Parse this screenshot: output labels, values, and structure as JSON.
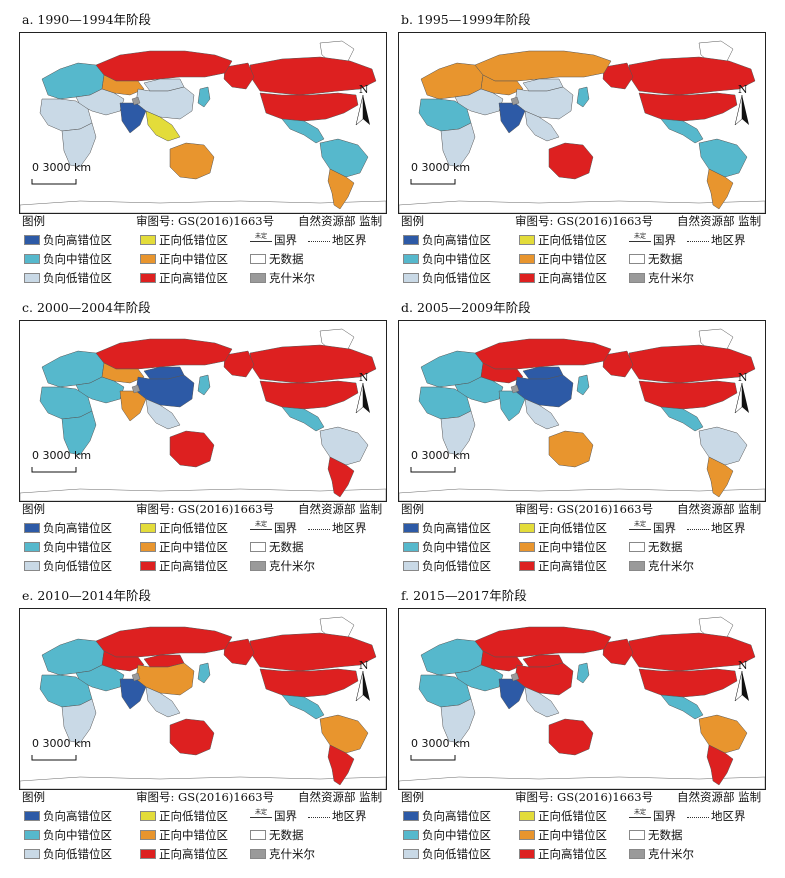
{
  "panels": [
    {
      "title": "a. 1990—1994年阶段"
    },
    {
      "title": "b. 1995—1999年阶段"
    },
    {
      "title": "c. 2000—2004年阶段"
    },
    {
      "title": "d. 2005—2009年阶段"
    },
    {
      "title": "e. 2010—2014年阶段"
    },
    {
      "title": "f. 2015—2017年阶段"
    }
  ],
  "scale_label": "0  3000 km",
  "north_label": "N",
  "legend": {
    "title": "图例",
    "map_approval": "审图号: GS(2016)1663号",
    "supervisor": "自然资源部 监制",
    "items": {
      "neg_high": "负向高错位区",
      "pos_low": "正向低错位区",
      "border_national": "国界",
      "border_national_tiny": "未定",
      "border_regional": "地区界",
      "neg_mid": "负向中错位区",
      "pos_mid": "正向中错位区",
      "no_data": "无数据",
      "neg_low": "负向低错位区",
      "pos_high": "正向高错位区",
      "kashmir": "克什米尔"
    }
  },
  "colors": {
    "neg_high": "#2d5aa6",
    "neg_mid": "#56b8cc",
    "neg_low": "#c9d9e6",
    "pos_low": "#e3dc3a",
    "pos_mid": "#e8952e",
    "pos_high": "#dd2020",
    "no_data": "#ffffff",
    "kashmir": "#9a9a9a"
  },
  "region_classes": {
    "a": {
      "europe": "neg_mid",
      "russia": "pos_high",
      "china": "neg_low",
      "mongolia": "neg_low",
      "kazakh": "pos_mid",
      "india": "neg_high",
      "mideast": "neg_low",
      "seasia": "pos_low",
      "japan": "neg_mid",
      "africa_n": "neg_low",
      "africa_s": "neg_low",
      "australia": "pos_mid",
      "usa": "pos_high",
      "canada": "pos_high",
      "alaska": "pos_high",
      "greenland": "no_data",
      "mexico": "neg_mid",
      "sa_north": "neg_mid",
      "sa_south": "pos_mid"
    },
    "b": {
      "europe": "pos_mid",
      "russia": "pos_mid",
      "china": "neg_low",
      "mongolia": "neg_low",
      "kazakh": "pos_mid",
      "india": "neg_high",
      "mideast": "neg_low",
      "seasia": "neg_low",
      "japan": "neg_mid",
      "africa_n": "neg_mid",
      "africa_s": "neg_low",
      "australia": "pos_high",
      "usa": "pos_high",
      "canada": "pos_high",
      "alaska": "pos_high",
      "greenland": "no_data",
      "mexico": "neg_mid",
      "sa_north": "neg_mid",
      "sa_south": "pos_mid"
    },
    "c": {
      "europe": "neg_mid",
      "russia": "pos_high",
      "china": "neg_high",
      "mongolia": "neg_high",
      "kazakh": "pos_mid",
      "india": "pos_mid",
      "mideast": "neg_mid",
      "seasia": "neg_low",
      "japan": "neg_mid",
      "africa_n": "neg_mid",
      "africa_s": "neg_mid",
      "australia": "pos_high",
      "usa": "pos_high",
      "canada": "pos_high",
      "alaska": "pos_high",
      "greenland": "no_data",
      "mexico": "neg_mid",
      "sa_north": "neg_low",
      "sa_south": "pos_high"
    },
    "d": {
      "europe": "neg_mid",
      "russia": "pos_high",
      "china": "neg_high",
      "mongolia": "neg_high",
      "kazakh": "pos_high",
      "india": "neg_mid",
      "mideast": "neg_mid",
      "seasia": "neg_low",
      "japan": "neg_mid",
      "africa_n": "neg_mid",
      "africa_s": "neg_low",
      "australia": "pos_mid",
      "usa": "pos_high",
      "canada": "pos_high",
      "alaska": "pos_high",
      "greenland": "no_data",
      "mexico": "neg_mid",
      "sa_north": "neg_low",
      "sa_south": "pos_mid"
    },
    "e": {
      "europe": "neg_mid",
      "russia": "pos_high",
      "china": "pos_mid",
      "mongolia": "pos_high",
      "kazakh": "pos_high",
      "india": "neg_high",
      "mideast": "neg_mid",
      "seasia": "neg_low",
      "japan": "neg_mid",
      "africa_n": "neg_mid",
      "africa_s": "neg_low",
      "australia": "pos_high",
      "usa": "pos_high",
      "canada": "pos_high",
      "alaska": "pos_high",
      "greenland": "no_data",
      "mexico": "neg_mid",
      "sa_north": "pos_mid",
      "sa_south": "pos_high"
    },
    "f": {
      "europe": "neg_mid",
      "russia": "pos_high",
      "china": "pos_high",
      "mongolia": "pos_high",
      "kazakh": "pos_high",
      "india": "neg_high",
      "mideast": "neg_mid",
      "seasia": "neg_low",
      "japan": "neg_mid",
      "africa_n": "neg_mid",
      "africa_s": "neg_low",
      "australia": "pos_high",
      "usa": "pos_high",
      "canada": "pos_high",
      "alaska": "pos_high",
      "greenland": "no_data",
      "mexico": "neg_mid",
      "sa_north": "pos_mid",
      "sa_south": "pos_high"
    }
  }
}
